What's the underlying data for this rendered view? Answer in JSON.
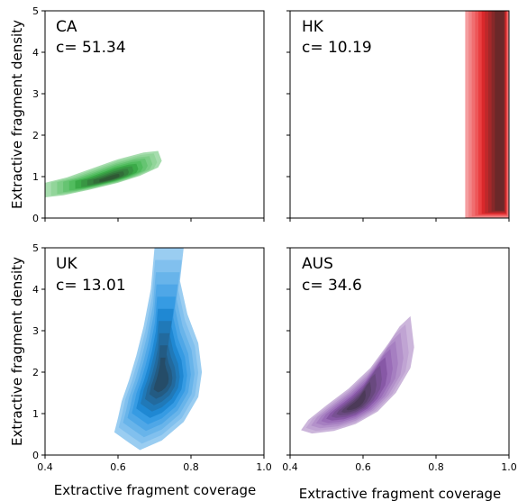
{
  "chart_data": {
    "type": "heatmap",
    "subtype": "kde-contour",
    "layout": "2x2",
    "shared_x": true,
    "shared_y": true,
    "xlabel": "Extractive fragment coverage",
    "ylabel": "Extractive fragment density",
    "xlim": [
      0.4,
      1.0
    ],
    "ylim": [
      0,
      5
    ],
    "xticks": [
      "0.4",
      "0.6",
      "0.8",
      "1.0"
    ],
    "yticks": [
      "0",
      "1",
      "2",
      "3",
      "4",
      "5"
    ],
    "grid": false,
    "panels": [
      {
        "name": "CA",
        "annotation": "c= 51.34",
        "color": "#3cb44b",
        "density_center": {
          "x": 0.58,
          "y": 0.95
        },
        "extent": {
          "x": [
            0.4,
            0.72
          ],
          "y": [
            0.45,
            1.65
          ]
        }
      },
      {
        "name": "HK",
        "annotation": "c= 10.19",
        "color": "#e8282b",
        "density_center": {
          "x": 0.975,
          "y": 2.5
        },
        "extent": {
          "x": [
            0.88,
            1.0
          ],
          "y": [
            0,
            5
          ]
        }
      },
      {
        "name": "UK",
        "annotation": "c= 13.01",
        "color": "#1e8fe0",
        "density_center": {
          "x": 0.72,
          "y": 1.8
        },
        "extent": {
          "x": [
            0.58,
            0.83
          ],
          "y": [
            0.1,
            5
          ]
        }
      },
      {
        "name": "AUS",
        "annotation": "c= 34.6",
        "color": "#8e5cb0",
        "density_center": {
          "x": 0.58,
          "y": 1.2
        },
        "extent": {
          "x": [
            0.43,
            0.74
          ],
          "y": [
            0.5,
            3.35
          ]
        }
      }
    ]
  }
}
